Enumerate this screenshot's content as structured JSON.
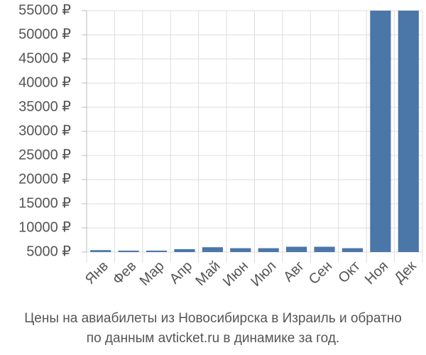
{
  "chart_data": {
    "type": "bar",
    "categories": [
      "Янв",
      "Фев",
      "Мар",
      "Апр",
      "Май",
      "Июн",
      "Июл",
      "Авг",
      "Сен",
      "Окт",
      "Ноя",
      "Дек"
    ],
    "values": [
      5400,
      5300,
      5300,
      5600,
      6000,
      5800,
      5800,
      6100,
      6100,
      5800,
      55000,
      55000
    ],
    "color": "#4a76a8",
    "ylim": [
      5000,
      55000
    ],
    "yticks": [
      {
        "value": 5000,
        "label": "5000 ₽"
      },
      {
        "value": 10000,
        "label": "10000 ₽"
      },
      {
        "value": 15000,
        "label": "15000 ₽"
      },
      {
        "value": 20000,
        "label": "20000 ₽"
      },
      {
        "value": 25000,
        "label": "25000 ₽"
      },
      {
        "value": 30000,
        "label": "30000 ₽"
      },
      {
        "value": 35000,
        "label": "35000 ₽"
      },
      {
        "value": 40000,
        "label": "40000 ₽"
      },
      {
        "value": 45000,
        "label": "45000 ₽"
      },
      {
        "value": 50000,
        "label": "50000 ₽"
      },
      {
        "value": 55000,
        "label": "55000 ₽"
      }
    ],
    "grid": true,
    "caption": [
      "Цены на авиабилеты из Новосибирска в Израиль и обратно",
      "по данным avticket.ru в динамике за год."
    ]
  }
}
